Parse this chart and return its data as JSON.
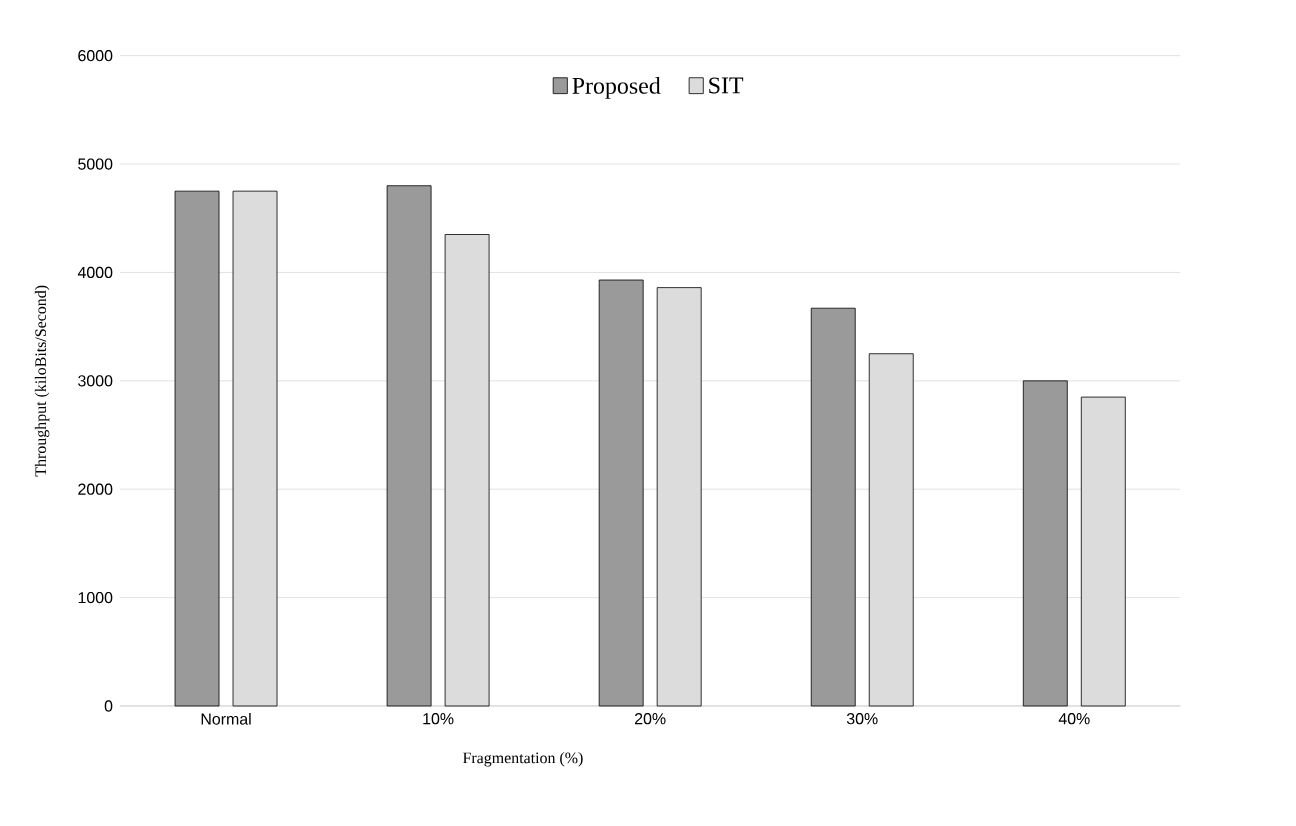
{
  "chart_data": {
    "type": "bar",
    "xlabel": "Fragmentation (%)",
    "ylabel": "Throughput (kiloBits/Second)",
    "categories": [
      "Normal",
      "10%",
      "20%",
      "30%",
      "40%"
    ],
    "series": [
      {
        "name": "Proposed",
        "color": "#9a9a9a",
        "values": [
          4750,
          4800,
          3930,
          3670,
          3000
        ]
      },
      {
        "name": "SIT",
        "color": "#dcdcdc",
        "values": [
          4750,
          4350,
          3860,
          3250,
          2850
        ]
      }
    ],
    "ylim": [
      0,
      6000
    ],
    "yticks": [
      0,
      1000,
      2000,
      3000,
      4000,
      5000,
      6000
    ],
    "grid": "y",
    "legend": "top"
  }
}
